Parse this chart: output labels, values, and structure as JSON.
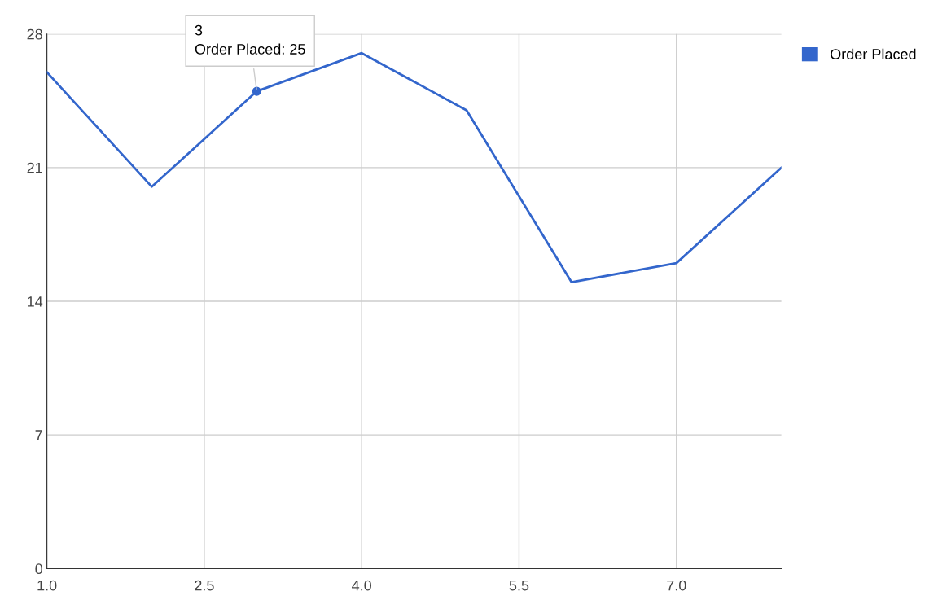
{
  "chart_data": {
    "type": "line",
    "x": [
      1,
      2,
      3,
      4,
      5,
      6,
      7,
      8
    ],
    "series": [
      {
        "name": "Order Placed",
        "color": "#3366cc",
        "values": [
          26,
          20,
          25,
          27,
          24,
          15,
          16,
          21
        ]
      }
    ],
    "xlim": [
      1,
      8
    ],
    "xticks": [
      {
        "value": 1,
        "label": "1.0"
      },
      {
        "value": 2.5,
        "label": "2.5"
      },
      {
        "value": 4,
        "label": "4.0"
      },
      {
        "value": 5.5,
        "label": "5.5"
      },
      {
        "value": 7,
        "label": "7.0"
      }
    ],
    "ylim": [
      0,
      28
    ],
    "yticks": [
      0,
      7,
      14,
      21,
      28
    ],
    "grid": true,
    "legend": "top right",
    "marker": "none",
    "line_style": "solid",
    "annotations": [
      {
        "text": "3\nOrder Placed: 25",
        "x": 3,
        "y": 25
      }
    ]
  }
}
